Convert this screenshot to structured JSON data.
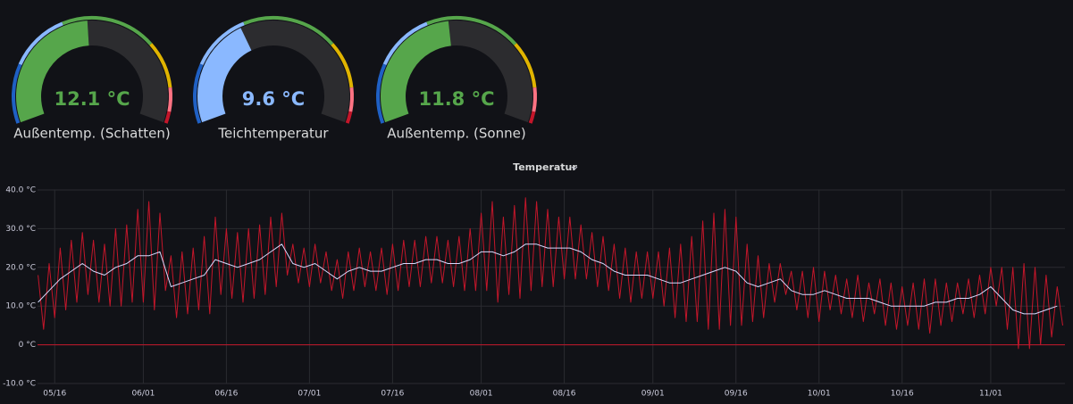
{
  "chart_data": [
    {
      "type": "gauge",
      "title": "Außentemp. (Schatten)",
      "value": 12.1,
      "value_label": "12.1 °C",
      "min": 0,
      "max": 25,
      "thresholds": [
        {
          "value": 0,
          "color": "#1f60c4"
        },
        {
          "value": 5,
          "color": "#8ab8ff"
        },
        {
          "value": 10,
          "color": "#56a64b"
        },
        {
          "value": 18,
          "color": "#e0b400"
        },
        {
          "value": 22,
          "color": "#ff7383"
        },
        {
          "value": 24,
          "color": "#c4162a"
        }
      ]
    },
    {
      "type": "gauge",
      "title": "Teichtemperatur",
      "value": 9.6,
      "value_label": "9.6 °C",
      "min": 0,
      "max": 25,
      "thresholds": [
        {
          "value": 0,
          "color": "#1f60c4"
        },
        {
          "value": 5,
          "color": "#8ab8ff"
        },
        {
          "value": 10,
          "color": "#56a64b"
        },
        {
          "value": 18,
          "color": "#e0b400"
        },
        {
          "value": 22,
          "color": "#ff7383"
        },
        {
          "value": 24,
          "color": "#c4162a"
        }
      ]
    },
    {
      "type": "gauge",
      "title": "Außentemp. (Sonne)",
      "value": 11.8,
      "value_label": "11.8 °C",
      "min": 0,
      "max": 25,
      "thresholds": [
        {
          "value": 0,
          "color": "#1f60c4"
        },
        {
          "value": 5,
          "color": "#8ab8ff"
        },
        {
          "value": 10,
          "color": "#56a64b"
        },
        {
          "value": 18,
          "color": "#e0b400"
        },
        {
          "value": 22,
          "color": "#ff7383"
        },
        {
          "value": 24,
          "color": "#c4162a"
        }
      ]
    },
    {
      "type": "line",
      "title": "Temperatur",
      "xlim": [
        132.9,
        318.4
      ],
      "xticks": [
        {
          "value": 136,
          "label": "05/16"
        },
        {
          "value": 152,
          "label": "06/01"
        },
        {
          "value": 167,
          "label": "06/16"
        },
        {
          "value": 182,
          "label": "07/01"
        },
        {
          "value": 197,
          "label": "07/16"
        },
        {
          "value": 213,
          "label": "08/01"
        },
        {
          "value": 228,
          "label": "08/16"
        },
        {
          "value": 244,
          "label": "09/01"
        },
        {
          "value": 259,
          "label": "09/16"
        },
        {
          "value": 274,
          "label": "10/01"
        },
        {
          "value": 289,
          "label": "10/16"
        },
        {
          "value": 305,
          "label": "11/01"
        }
      ],
      "ylim": [
        -10,
        40
      ],
      "yticks": [
        {
          "value": -10,
          "label": "-10.0 °C"
        },
        {
          "value": 0,
          "label": "0 °C"
        },
        {
          "value": 10,
          "label": "10.0 °C"
        },
        {
          "value": 20,
          "label": "20.0 °C"
        },
        {
          "value": 30,
          "label": "30.0 °C"
        },
        {
          "value": 40,
          "label": "40.0 °C"
        }
      ],
      "grid": true,
      "threshold_line": {
        "value": 0,
        "color": "#c4162a"
      },
      "series": [
        {
          "color": "#c4162a",
          "x": [
            133,
            134,
            135,
            136,
            137,
            138,
            139,
            140,
            141,
            142,
            143,
            144,
            145,
            146,
            147,
            148,
            149,
            150,
            151,
            152,
            153,
            154,
            155,
            156,
            157,
            158,
            159,
            160,
            161,
            162,
            163,
            164,
            165,
            166,
            167,
            168,
            169,
            170,
            171,
            172,
            173,
            174,
            175,
            176,
            177,
            178,
            179,
            180,
            181,
            182,
            183,
            184,
            185,
            186,
            187,
            188,
            189,
            190,
            191,
            192,
            193,
            194,
            195,
            196,
            197,
            198,
            199,
            200,
            201,
            202,
            203,
            204,
            205,
            206,
            207,
            208,
            209,
            210,
            211,
            212,
            213,
            214,
            215,
            216,
            217,
            218,
            219,
            220,
            221,
            222,
            223,
            224,
            225,
            226,
            227,
            228,
            229,
            230,
            231,
            232,
            233,
            234,
            235,
            236,
            237,
            238,
            239,
            240,
            241,
            242,
            243,
            244,
            245,
            246,
            247,
            248,
            249,
            250,
            251,
            252,
            253,
            254,
            255,
            256,
            257,
            258,
            259,
            260,
            261,
            262,
            263,
            264,
            265,
            266,
            267,
            268,
            269,
            270,
            271,
            272,
            273,
            274,
            275,
            276,
            277,
            278,
            279,
            280,
            281,
            282,
            283,
            284,
            285,
            286,
            287,
            288,
            289,
            290,
            291,
            292,
            293,
            294,
            295,
            296,
            297,
            298,
            299,
            300,
            301,
            302,
            303,
            304,
            305,
            306,
            307,
            308,
            309,
            310,
            311,
            312,
            313,
            314,
            315,
            316,
            317,
            318
          ],
          "values": [
            18,
            4,
            21,
            7,
            25,
            9,
            27,
            11,
            29,
            13,
            27,
            11,
            26,
            10,
            30,
            10,
            31,
            11,
            35,
            11,
            37,
            9,
            34,
            14,
            23,
            7,
            24,
            8,
            25,
            9,
            28,
            8,
            33,
            13,
            30,
            12,
            29,
            11,
            30,
            12,
            31,
            13,
            33,
            15,
            34,
            18,
            26,
            16,
            25,
            15,
            26,
            16,
            24,
            14,
            22,
            12,
            24,
            14,
            25,
            15,
            24,
            14,
            25,
            13,
            26,
            14,
            27,
            15,
            27,
            15,
            28,
            16,
            28,
            16,
            27,
            15,
            28,
            14,
            30,
            14,
            34,
            14,
            37,
            11,
            33,
            13,
            36,
            12,
            38,
            14,
            37,
            15,
            35,
            15,
            33,
            17,
            33,
            17,
            31,
            17,
            29,
            15,
            28,
            14,
            26,
            12,
            25,
            11,
            24,
            12,
            24,
            12,
            24,
            10,
            25,
            7,
            26,
            6,
            28,
            6,
            32,
            4,
            34,
            4,
            35,
            5,
            33,
            5,
            26,
            6,
            23,
            7,
            21,
            11,
            21,
            13,
            19,
            9,
            19,
            7,
            20,
            6,
            19,
            9,
            18,
            8,
            17,
            7,
            18,
            6,
            16,
            8,
            17,
            5,
            16,
            4,
            15,
            5,
            16,
            4,
            17,
            3,
            17,
            5,
            16,
            6,
            16,
            8,
            17,
            7,
            18,
            8,
            20,
            10,
            20,
            4,
            20,
            -1,
            21,
            -1,
            20,
            0,
            18,
            2,
            15,
            5
          ]
        },
        {
          "color": "#d8d9ff",
          "x": [
            133,
            135,
            137,
            139,
            141,
            143,
            145,
            147,
            149,
            151,
            153,
            155,
            157,
            159,
            161,
            163,
            165,
            167,
            169,
            171,
            173,
            175,
            177,
            179,
            181,
            183,
            185,
            187,
            189,
            191,
            193,
            195,
            197,
            199,
            201,
            203,
            205,
            207,
            209,
            211,
            213,
            215,
            217,
            219,
            221,
            223,
            225,
            227,
            229,
            231,
            233,
            235,
            237,
            239,
            241,
            243,
            245,
            247,
            249,
            251,
            253,
            255,
            257,
            259,
            261,
            263,
            265,
            267,
            269,
            271,
            273,
            275,
            277,
            279,
            281,
            283,
            285,
            287,
            289,
            291,
            293,
            295,
            297,
            299,
            301,
            303,
            305,
            307,
            309,
            311,
            313,
            315,
            317
          ],
          "values": [
            11,
            14,
            17,
            19,
            21,
            19,
            18,
            20,
            21,
            23,
            23,
            24,
            15,
            16,
            17,
            18,
            22,
            21,
            20,
            21,
            22,
            24,
            26,
            21,
            20,
            21,
            19,
            17,
            19,
            20,
            19,
            19,
            20,
            21,
            21,
            22,
            22,
            21,
            21,
            22,
            24,
            24,
            23,
            24,
            26,
            26,
            25,
            25,
            25,
            24,
            22,
            21,
            19,
            18,
            18,
            18,
            17,
            16,
            16,
            17,
            18,
            19,
            20,
            19,
            16,
            15,
            16,
            17,
            14,
            13,
            13,
            14,
            13,
            12,
            12,
            12,
            11,
            10,
            10,
            10,
            10,
            11,
            11,
            12,
            12,
            13,
            15,
            12,
            9,
            8,
            8,
            9,
            10
          ]
        }
      ]
    }
  ]
}
